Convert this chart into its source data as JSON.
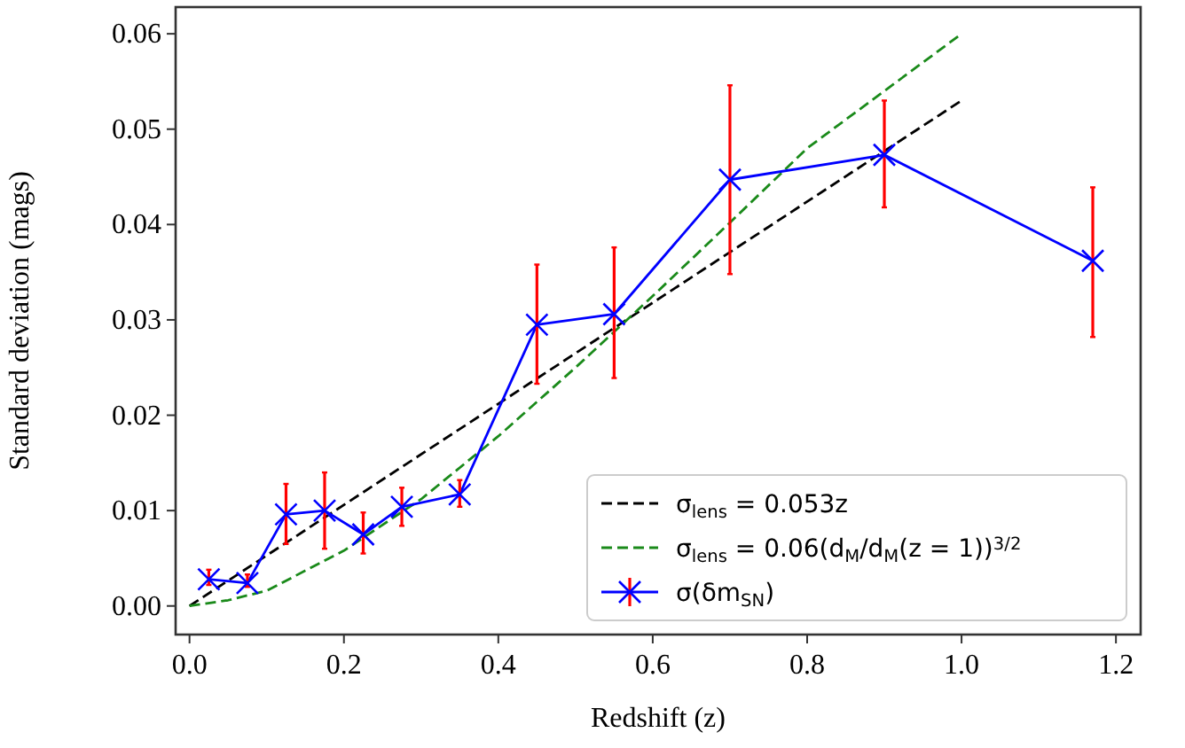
{
  "chart_data": {
    "type": "line",
    "xlabel": "Redshift (z)",
    "ylabel": "Standard deviation (mags)",
    "xlim": [
      -0.018,
      1.232
    ],
    "ylim": [
      -0.003,
      0.0628
    ],
    "xticks": [
      {
        "value": 0,
        "label": "0.0"
      },
      {
        "value": 0.2,
        "label": "0.2"
      },
      {
        "value": 0.4,
        "label": "0.4"
      },
      {
        "value": 0.6,
        "label": "0.6"
      },
      {
        "value": 0.8,
        "label": "0.8"
      },
      {
        "value": 1,
        "label": "1.0"
      },
      {
        "value": 1.2,
        "label": "1.2"
      }
    ],
    "yticks": [
      {
        "value": 0,
        "label": "0.00"
      },
      {
        "value": 0.01,
        "label": "0.01"
      },
      {
        "value": 0.02,
        "label": "0.02"
      },
      {
        "value": 0.03,
        "label": "0.03"
      },
      {
        "value": 0.04,
        "label": "0.04"
      },
      {
        "value": 0.05,
        "label": "0.05"
      },
      {
        "value": 0.06,
        "label": "0.06"
      }
    ],
    "grid": false,
    "legend": "bottom right",
    "series": [
      {
        "name": "σ$_{lens}$ = 0.053z",
        "color": "#000000",
        "line_style": "dashed",
        "marker": "none",
        "x": [
          0,
          1
        ],
        "values": [
          0,
          0.053
        ]
      },
      {
        "name": "σ$_{lens}$ = 0.06(d$_{M}$/d$_{M}$(z = 1))$^{3/2}$",
        "color": "#1a8a1a",
        "line_style": "dashed",
        "marker": "none",
        "x": [
          0,
          0.05,
          0.1,
          0.2,
          0.3,
          0.4,
          0.5,
          0.6,
          0.7,
          0.8,
          0.9,
          1.0
        ],
        "values": [
          0,
          0.0006,
          0.0016,
          0.0058,
          0.0112,
          0.0178,
          0.025,
          0.0325,
          0.0402,
          0.048,
          0.054,
          0.06
        ]
      },
      {
        "name": "σ(δm$_{SN}$)",
        "color": "#0000ff",
        "line_style": "solid",
        "marker": "cross",
        "x": [
          0.025,
          0.075,
          0.125,
          0.175,
          0.225,
          0.275,
          0.35,
          0.45,
          0.55,
          0.7,
          0.9,
          1.17
        ],
        "values": [
          0.0028,
          0.0024,
          0.0096,
          0.01,
          0.0075,
          0.0104,
          0.0117,
          0.0295,
          0.0306,
          0.0447,
          0.0473,
          0.0362
        ],
        "errors": [
          [
            0.0022,
            0.0038
          ],
          [
            0.002,
            0.0033
          ],
          [
            0.0065,
            0.0128
          ],
          [
            0.006,
            0.014
          ],
          [
            0.0055,
            0.0098
          ],
          [
            0.0084,
            0.0124
          ],
          [
            0.0104,
            0.0132
          ],
          [
            0.0233,
            0.0358
          ],
          [
            0.0239,
            0.0376
          ],
          [
            0.0348,
            0.0546
          ],
          [
            0.0418,
            0.053
          ],
          [
            0.0282,
            0.0439
          ]
        ]
      }
    ]
  }
}
